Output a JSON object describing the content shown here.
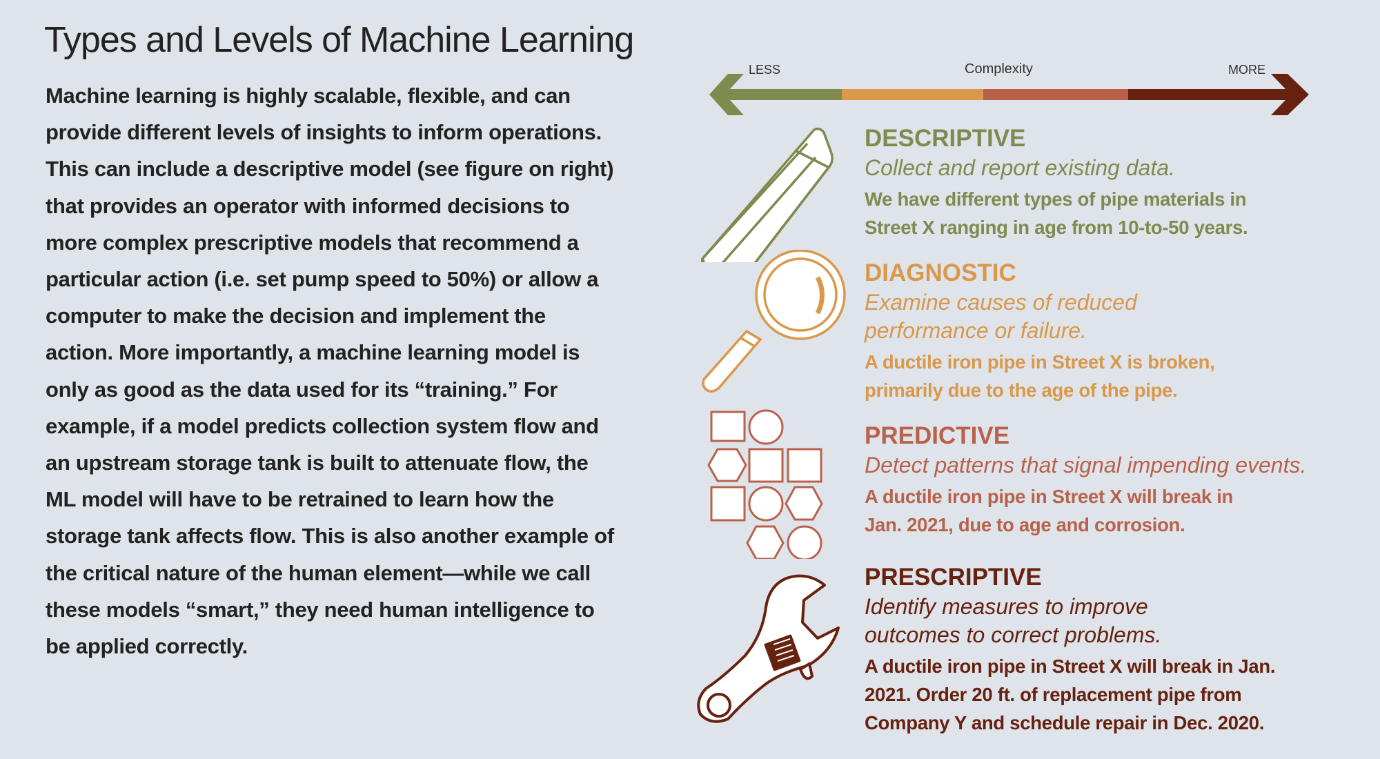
{
  "title": "Types and Levels of Machine Learning",
  "body": "Machine learning is highly scalable, flexible, and can provide different levels of insights to inform operations. This can include a  descriptive model (see figure on right) that provides an operator with informed decisions to more complex prescriptive models that recommend a particular action (i.e. set pump speed to 50%) or allow a computer to make the decision and implement the action. More importantly, a machine learning model is only as good as the data used for its “training.” For example, if a model predicts collection system flow and an upstream storage tank is built to attenuate flow, the ML model will have to be retrained to learn how the storage tank affects flow. This is also another example of the critical nature of the human element—while we call these models “smart,” they need human intelligence to be applied correctly.",
  "scale": {
    "less": "LESS",
    "label": "Complexity",
    "more": "MORE"
  },
  "colors": {
    "background": "#dfe3ea",
    "descriptive": "#7f8a4f",
    "diagnostic": "#d9984a",
    "predictive": "#b9624b",
    "prescriptive": "#66210f"
  },
  "levels": [
    {
      "name": "DESCRIPTIVE",
      "icon": "pencil-icon",
      "subtitle": "Collect and report existing data.",
      "example": "We have different types of pipe materials in Street X ranging in age from 10-to-50 years."
    },
    {
      "name": "DIAGNOSTIC",
      "icon": "magnifying-glass-icon",
      "subtitle": "Examine causes of reduced performance or failure.",
      "example": "A ductile iron pipe in Street X is broken, primarily due to the age of the pipe."
    },
    {
      "name": "PREDICTIVE",
      "icon": "shapes-pattern-icon",
      "subtitle": "Detect patterns that signal impending events.",
      "example": "A ductile iron pipe in Street X will break in Jan. 2021, due to age and corrosion."
    },
    {
      "name": "PRESCRIPTIVE",
      "icon": "wrench-icon",
      "subtitle": "Identify measures to improve outcomes to correct problems.",
      "example": "A ductile iron pipe in Street X will break in Jan. 2021. Order 20 ft. of replacement pipe from Company Y and schedule repair in Dec. 2020."
    }
  ]
}
